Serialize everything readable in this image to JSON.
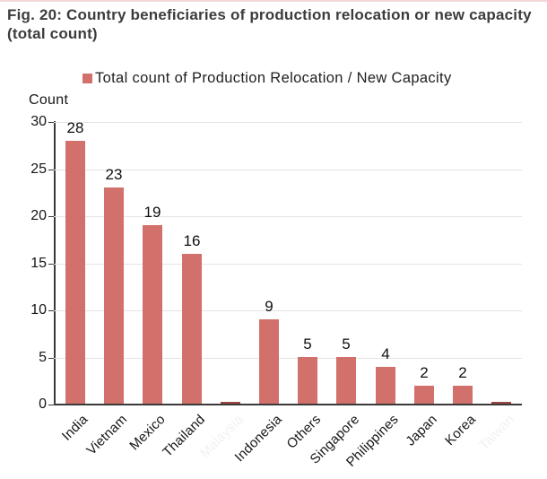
{
  "title": {
    "text": "Fig. 20: Country beneficiaries of production relocation or new capacity (total count)"
  },
  "legend": {
    "marker_color": "#d2716b",
    "label": "Total count of Production Relocation / New Capacity"
  },
  "colors": {
    "bar": "#d2716b",
    "sliver_bar": "#9e453f",
    "axis": "#3a3a3a",
    "gridline": "#e4e4e4",
    "top_hairline": "#f2d8d8",
    "title_text": "#3c3c3c"
  },
  "chart_data": {
    "type": "bar",
    "title": "Fig. 20: Country beneficiaries of production relocation or new capacity (total count)",
    "legend_entries": [
      "Total count of Production Relocation / New Capacity"
    ],
    "xlabel": "",
    "ylabel": "Count",
    "ylim": [
      0,
      30
    ],
    "yticks": [
      0,
      5,
      10,
      15,
      20,
      25,
      30
    ],
    "grid": true,
    "legend_position": "top-center",
    "categories": [
      "India",
      "Vietnam",
      "Mexico",
      "Thailand",
      "Malaysia",
      "Indonesia",
      "Others",
      "Singapore",
      "Philippines",
      "Japan",
      "Korea",
      "Taiwan"
    ],
    "values": [
      28,
      23,
      19,
      16,
      0,
      9,
      5,
      5,
      4,
      2,
      2,
      0
    ],
    "hidden_label_indices": [
      4,
      11
    ],
    "note": "Categories at hidden_label_indices are drawn as near-zero sliver bars and their axis labels are rendered in near-white (illegible) in the source image; zero-value bars show no data label."
  }
}
